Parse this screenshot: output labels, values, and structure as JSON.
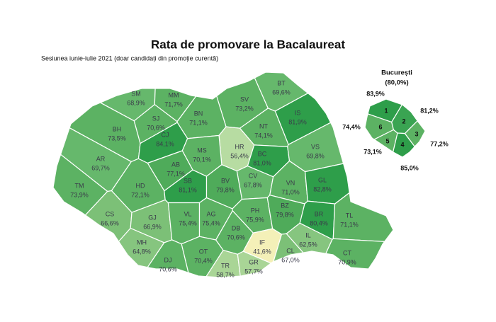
{
  "chart_data": [
    {
      "type": "map",
      "title": "Rata de promovare la Bacalaureat",
      "subtitle": "Sesiunea iunie-iulie 2021 (doar candidați din promoție curentă)",
      "categories": [
        "SM",
        "MM",
        "BT",
        "SV",
        "BH",
        "SJ",
        "BN",
        "IS",
        "CJ",
        "NT",
        "HR",
        "MS",
        "BC",
        "VS",
        "AR",
        "AB",
        "CV",
        "VN",
        "GL",
        "TM",
        "HD",
        "SB",
        "BV",
        "CS",
        "GJ",
        "VL",
        "AG",
        "PH",
        "BZ",
        "BR",
        "TL",
        "MH",
        "DJ",
        "OT",
        "DB",
        "IF",
        "IL",
        "CL",
        "TR",
        "GR",
        "CT"
      ],
      "values": [
        68.9,
        71.7,
        69.6,
        73.2,
        73.5,
        70.6,
        71.1,
        81.9,
        84.1,
        74.1,
        56.4,
        70.1,
        81.0,
        69.8,
        69.7,
        77.1,
        67.8,
        71.0,
        82.8,
        73.9,
        72.1,
        81.1,
        79.8,
        66.6,
        66.9,
        75.4,
        75.4,
        75.9,
        79.8,
        80.4,
        71.1,
        64.8,
        70.6,
        70.4,
        70.6,
        41.6,
        62.5,
        67.0,
        58.7,
        57.7,
        70.9
      ],
      "value_labels": [
        "68,9%",
        "71,7%",
        "69,6%",
        "73,2%",
        "73,5%",
        "70,6%",
        "71,1%",
        "81,9%",
        "84,1%",
        "74,1%",
        "56,4%",
        "70,1%",
        "81,0%",
        "69,8%",
        "69,7%",
        "77,1%",
        "67,8%",
        "71,0%",
        "82,8%",
        "73,9%",
        "72,1%",
        "81,1%",
        "79,8%",
        "66,6%",
        "66,9%",
        "75,4%",
        "75,4%",
        "75,9%",
        "79,8%",
        "80,4%",
        "71,1%",
        "64,8%",
        "70,6%",
        "70,4%",
        "70,6%",
        "41,6%",
        "62,5%",
        "67,0%",
        "58,7%",
        "57,7%",
        "70,9%"
      ],
      "colors": [
        "#66b86c",
        "#5cb263",
        "#66b86c",
        "#5cb263",
        "#5cb263",
        "#5cb263",
        "#5cb263",
        "#2e9e4a",
        "#2e9e4a",
        "#5cb263",
        "#b7dca2",
        "#5cb263",
        "#2e9e4a",
        "#66b86c",
        "#66b86c",
        "#4fab5a",
        "#66b86c",
        "#5cb263",
        "#2e9e4a",
        "#5cb263",
        "#5cb263",
        "#2e9e4a",
        "#4fab5a",
        "#7cc077",
        "#7cc077",
        "#5cb263",
        "#5cb263",
        "#5cb263",
        "#4fab5a",
        "#2e9e4a",
        "#5cb263",
        "#86c57f",
        "#5cb263",
        "#5cb263",
        "#5cb263",
        "#f4f0b8",
        "#86c57f",
        "#7cc077",
        "#a9d596",
        "#a9d596",
        "#5cb263"
      ]
    },
    {
      "type": "map",
      "title": "București",
      "total": 80.0,
      "total_label": "(80,0%)",
      "categories": [
        "1",
        "2",
        "3",
        "4",
        "5",
        "6"
      ],
      "values": [
        83.9,
        81.2,
        77.2,
        85.0,
        73.1,
        74.4
      ],
      "value_labels": [
        "83,9%",
        "81,2%",
        "77,2%",
        "85,0%",
        "73,1%",
        "74,4%"
      ],
      "colors": [
        "#2e9e4a",
        "#3aa452",
        "#5cb263",
        "#2e9e4a",
        "#5cb263",
        "#5cb263"
      ]
    }
  ]
}
